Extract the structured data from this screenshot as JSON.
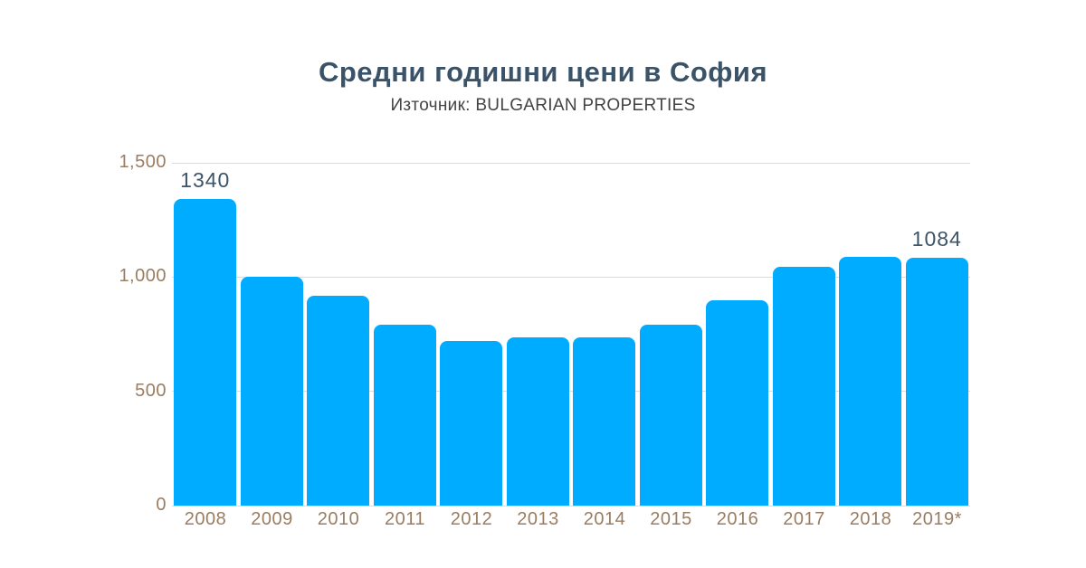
{
  "header": {
    "title": "Средни годишни цени в София",
    "subtitle": "Източник: BULGARIAN PROPERTIES"
  },
  "chart_data": {
    "type": "bar",
    "title": "Средни годишни цени в София",
    "subtitle": "Източник: BULGARIAN PROPERTIES",
    "categories": [
      "2008",
      "2009",
      "2010",
      "2011",
      "2012",
      "2013",
      "2014",
      "2015",
      "2016",
      "2017",
      "2018",
      "2019*"
    ],
    "values": [
      1340,
      1000,
      920,
      790,
      720,
      735,
      738,
      790,
      900,
      1045,
      1090,
      1084
    ],
    "value_labels": [
      {
        "index": 0,
        "text": "1340"
      },
      {
        "index": 11,
        "text": "1084"
      }
    ],
    "xlabel": "",
    "ylabel": "",
    "ylim": [
      0,
      1500
    ],
    "yticks": [
      {
        "value": 0,
        "label": "0"
      },
      {
        "value": 500,
        "label": "500"
      },
      {
        "value": 1000,
        "label": "1,000"
      },
      {
        "value": 1500,
        "label": "1,500"
      }
    ],
    "grid": true,
    "legend_position": "none",
    "colors": {
      "bar": "#00ACFF",
      "grid": "#DBDBDB",
      "axis_tick_text": "#9A7D61",
      "value_label_text": "#3E5468",
      "title_text": "#3A5369",
      "subtitle_text": "#434343",
      "background": "#FFFFFF"
    }
  }
}
